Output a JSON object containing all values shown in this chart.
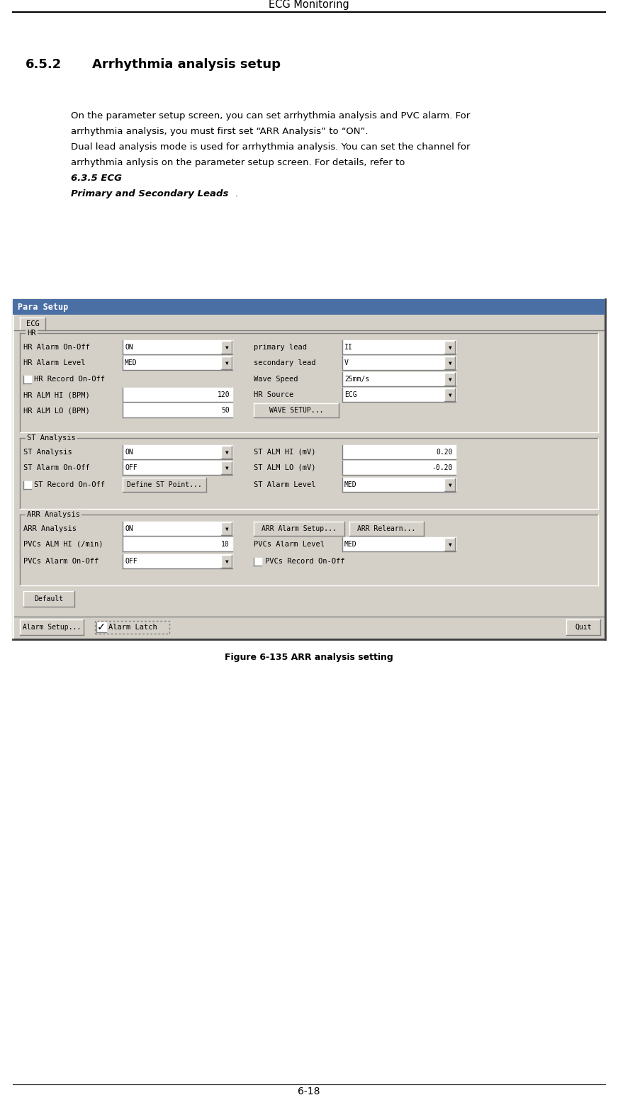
{
  "page_title": "ECG Monitoring",
  "section": "6.5.2",
  "section_title": "Arrhythmia analysis setup",
  "figure_caption": "Figure 6-135 ARR analysis setting",
  "page_number": "6-18",
  "dialog_title": "Para Setup",
  "tab_label": "ECG",
  "hr_group": "HR",
  "st_group": "ST Analysis",
  "arr_group": "ARR Analysis",
  "white": "#ffffff",
  "black": "#000000",
  "frame_bg": "#d4d0c8",
  "title_bg": "#4a6fa5"
}
